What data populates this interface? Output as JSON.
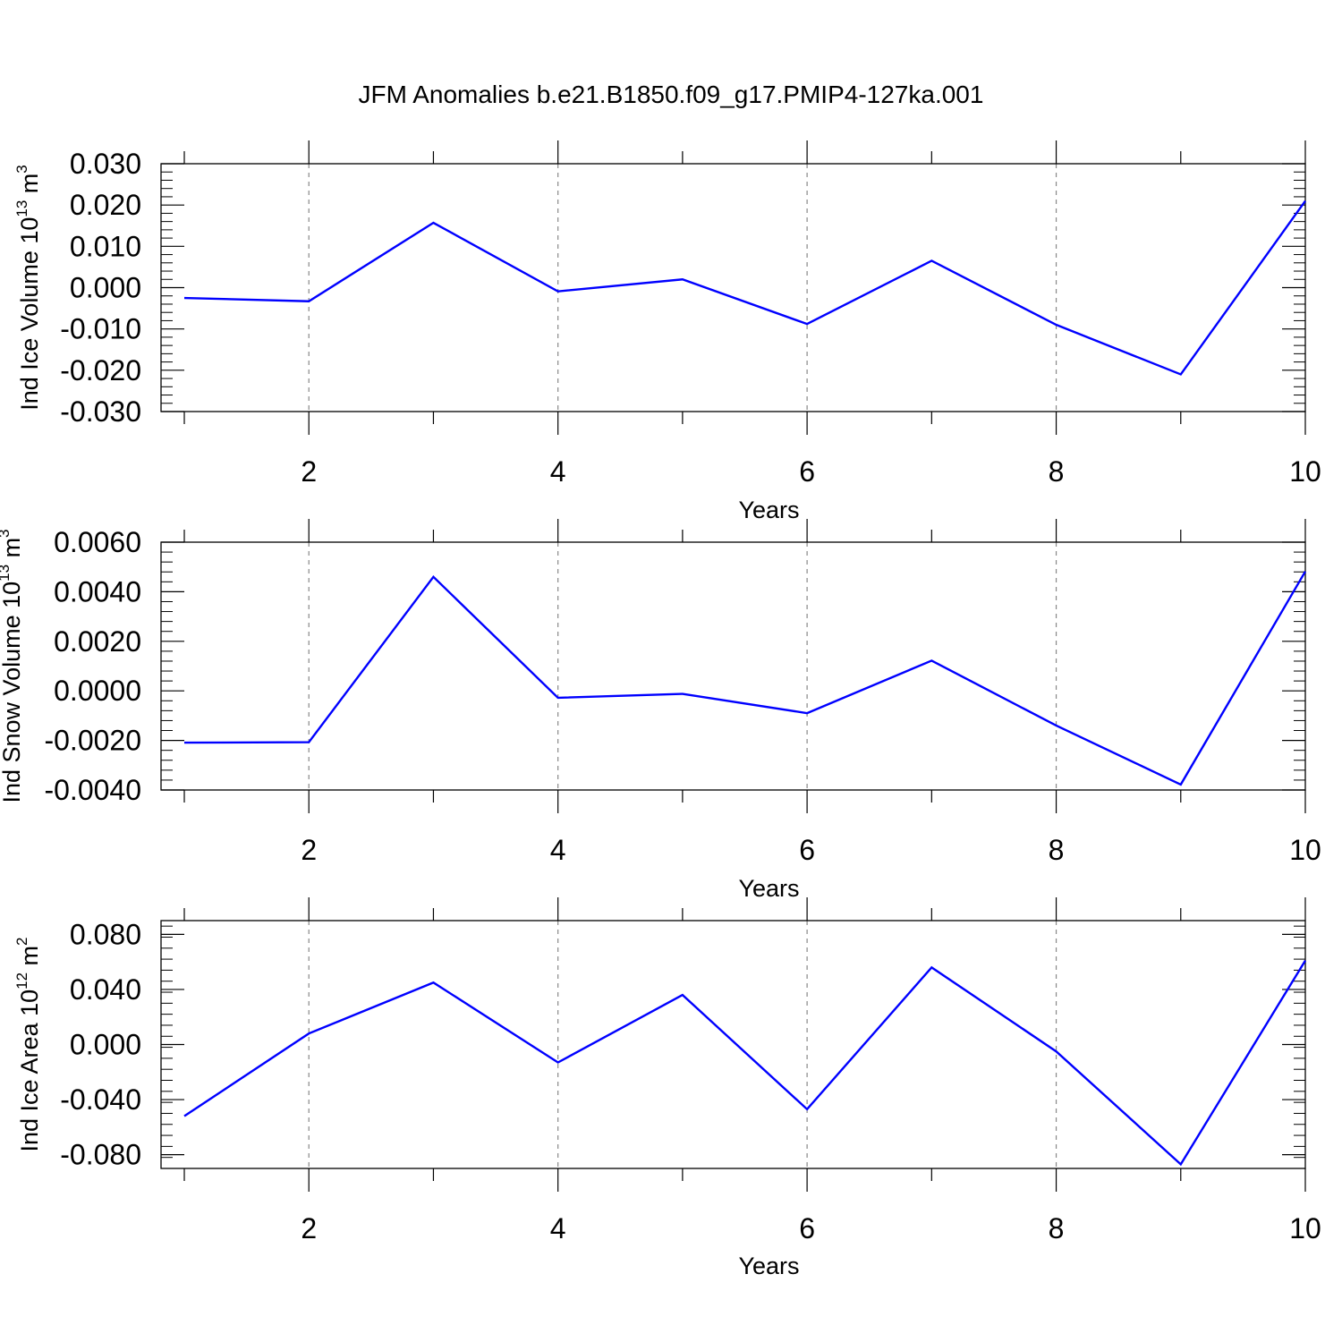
{
  "title": "JFM Anomalies b.e21.B1850.f09_g17.PMIP4-127ka.001",
  "line_color": "#0000ff",
  "grid_color": "#888888",
  "chart_data": [
    {
      "type": "line",
      "ylabel": {
        "text": "Ind Ice Volume 10",
        "exp": "13",
        "unit": " m",
        "unit_exp": "3"
      },
      "xlabel": "Years",
      "x": [
        1,
        2,
        3,
        4,
        5,
        6,
        7,
        8,
        9,
        10
      ],
      "values": [
        -0.0025,
        -0.0033,
        0.0157,
        -0.0009,
        0.002,
        -0.0088,
        0.0065,
        -0.009,
        -0.021,
        0.021
      ],
      "xlim": [
        1,
        10
      ],
      "ylim": [
        -0.03,
        0.03
      ],
      "xticks": [
        2,
        4,
        6,
        8,
        10
      ],
      "xtick_labels": [
        "2",
        "4",
        "6",
        "8",
        "10"
      ],
      "yticks": [
        -0.03,
        -0.02,
        -0.01,
        0.0,
        0.01,
        0.02,
        0.03
      ],
      "ytick_labels": [
        "-0.030",
        "-0.020",
        "-0.010",
        "0.000",
        "0.010",
        "0.020",
        "0.030"
      ],
      "grid": "vertical-dashed"
    },
    {
      "type": "line",
      "ylabel": {
        "text": "Ind Snow Volume 10",
        "exp": "13",
        "unit": " m",
        "unit_exp": "3"
      },
      "xlabel": "Years",
      "x": [
        1,
        2,
        3,
        4,
        5,
        6,
        7,
        8,
        9,
        10
      ],
      "values": [
        -0.00209,
        -0.00207,
        0.0046,
        -0.00028,
        -0.00012,
        -0.0009,
        0.00122,
        -0.0014,
        -0.00378,
        0.00482
      ],
      "xlim": [
        1,
        10
      ],
      "ylim": [
        -0.004,
        0.006
      ],
      "xticks": [
        2,
        4,
        6,
        8,
        10
      ],
      "xtick_labels": [
        "2",
        "4",
        "6",
        "8",
        "10"
      ],
      "yticks": [
        -0.004,
        -0.002,
        0.0,
        0.002,
        0.004,
        0.006
      ],
      "ytick_labels": [
        "-0.0040",
        "-0.0020",
        "0.0000",
        "0.0020",
        "0.0040",
        "0.0060"
      ],
      "grid": "vertical-dashed"
    },
    {
      "type": "line",
      "ylabel": {
        "text": "Ind Ice Area 10",
        "exp": "12",
        "unit": " m",
        "unit_exp": "2"
      },
      "xlabel": "Years",
      "x": [
        1,
        2,
        3,
        4,
        5,
        6,
        7,
        8,
        9,
        10
      ],
      "values": [
        -0.052,
        0.008,
        0.045,
        -0.013,
        0.036,
        -0.047,
        0.056,
        -0.005,
        -0.087,
        0.061
      ],
      "xlim": [
        1,
        10
      ],
      "ylim": [
        -0.09,
        0.09
      ],
      "xticks": [
        2,
        4,
        6,
        8,
        10
      ],
      "xtick_labels": [
        "2",
        "4",
        "6",
        "8",
        "10"
      ],
      "yticks": [
        -0.08,
        -0.04,
        0.0,
        0.04,
        0.08
      ],
      "ytick_labels": [
        "-0.080",
        "-0.040",
        "0.000",
        "0.040",
        "0.080"
      ],
      "grid": "vertical-dashed"
    }
  ]
}
